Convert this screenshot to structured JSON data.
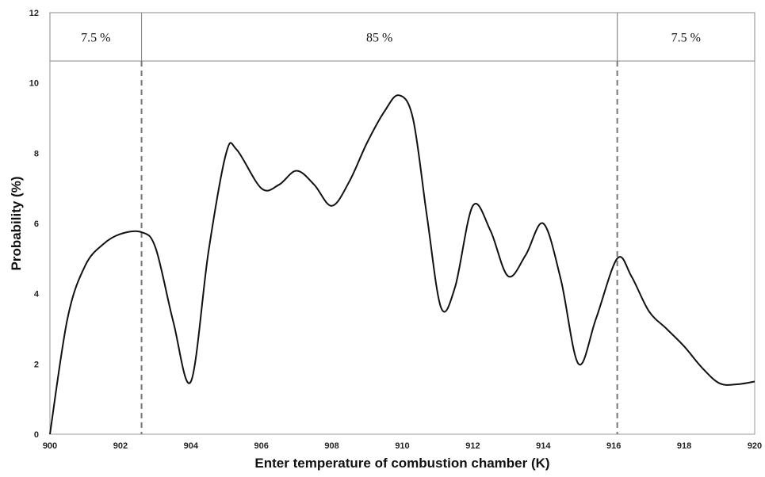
{
  "chart_data": {
    "type": "line",
    "xlabel": "Enter temperature of combustion chamber (K)",
    "ylabel": "Probability (%)",
    "xlim": [
      900,
      920
    ],
    "ylim": [
      0,
      12
    ],
    "x_ticks": [
      900,
      902,
      904,
      906,
      908,
      910,
      912,
      914,
      916,
      918,
      920
    ],
    "y_ticks": [
      0,
      2,
      4,
      6,
      8,
      10,
      12
    ],
    "grid": false,
    "series": [
      {
        "x": [
          900,
          900.5,
          901,
          901.5,
          902,
          902.6,
          903,
          903.5,
          904,
          904.5,
          905,
          905.3,
          906,
          906.5,
          907,
          907.5,
          908,
          908.5,
          909,
          909.5,
          909.9,
          910.3,
          910.7,
          911.1,
          911.5,
          912,
          912.5,
          913,
          913.5,
          914,
          914.5,
          915,
          915.5,
          916.1,
          916.5,
          917,
          917.5,
          918,
          918.5,
          919,
          919.5,
          920
        ],
        "y": [
          0,
          3.3,
          4.8,
          5.4,
          5.7,
          5.75,
          5.3,
          3.2,
          1.5,
          5.2,
          8.0,
          8.1,
          7.0,
          7.1,
          7.5,
          7.1,
          6.5,
          7.2,
          8.3,
          9.2,
          9.65,
          9.0,
          6.2,
          3.6,
          4.2,
          6.5,
          5.8,
          4.5,
          5.1,
          6.0,
          4.4,
          2.0,
          3.3,
          5.0,
          4.5,
          3.5,
          3.0,
          2.5,
          1.9,
          1.45,
          1.42,
          1.5
        ]
      }
    ],
    "thresholds": [
      {
        "x": 902.6
      },
      {
        "x": 916.1
      }
    ],
    "bands": [
      {
        "label": "7.5 %",
        "from": 900,
        "to": 902.6
      },
      {
        "label": "85 %",
        "from": 902.6,
        "to": 916.1
      },
      {
        "label": "7.5 %",
        "from": 916.1,
        "to": 920
      }
    ]
  }
}
